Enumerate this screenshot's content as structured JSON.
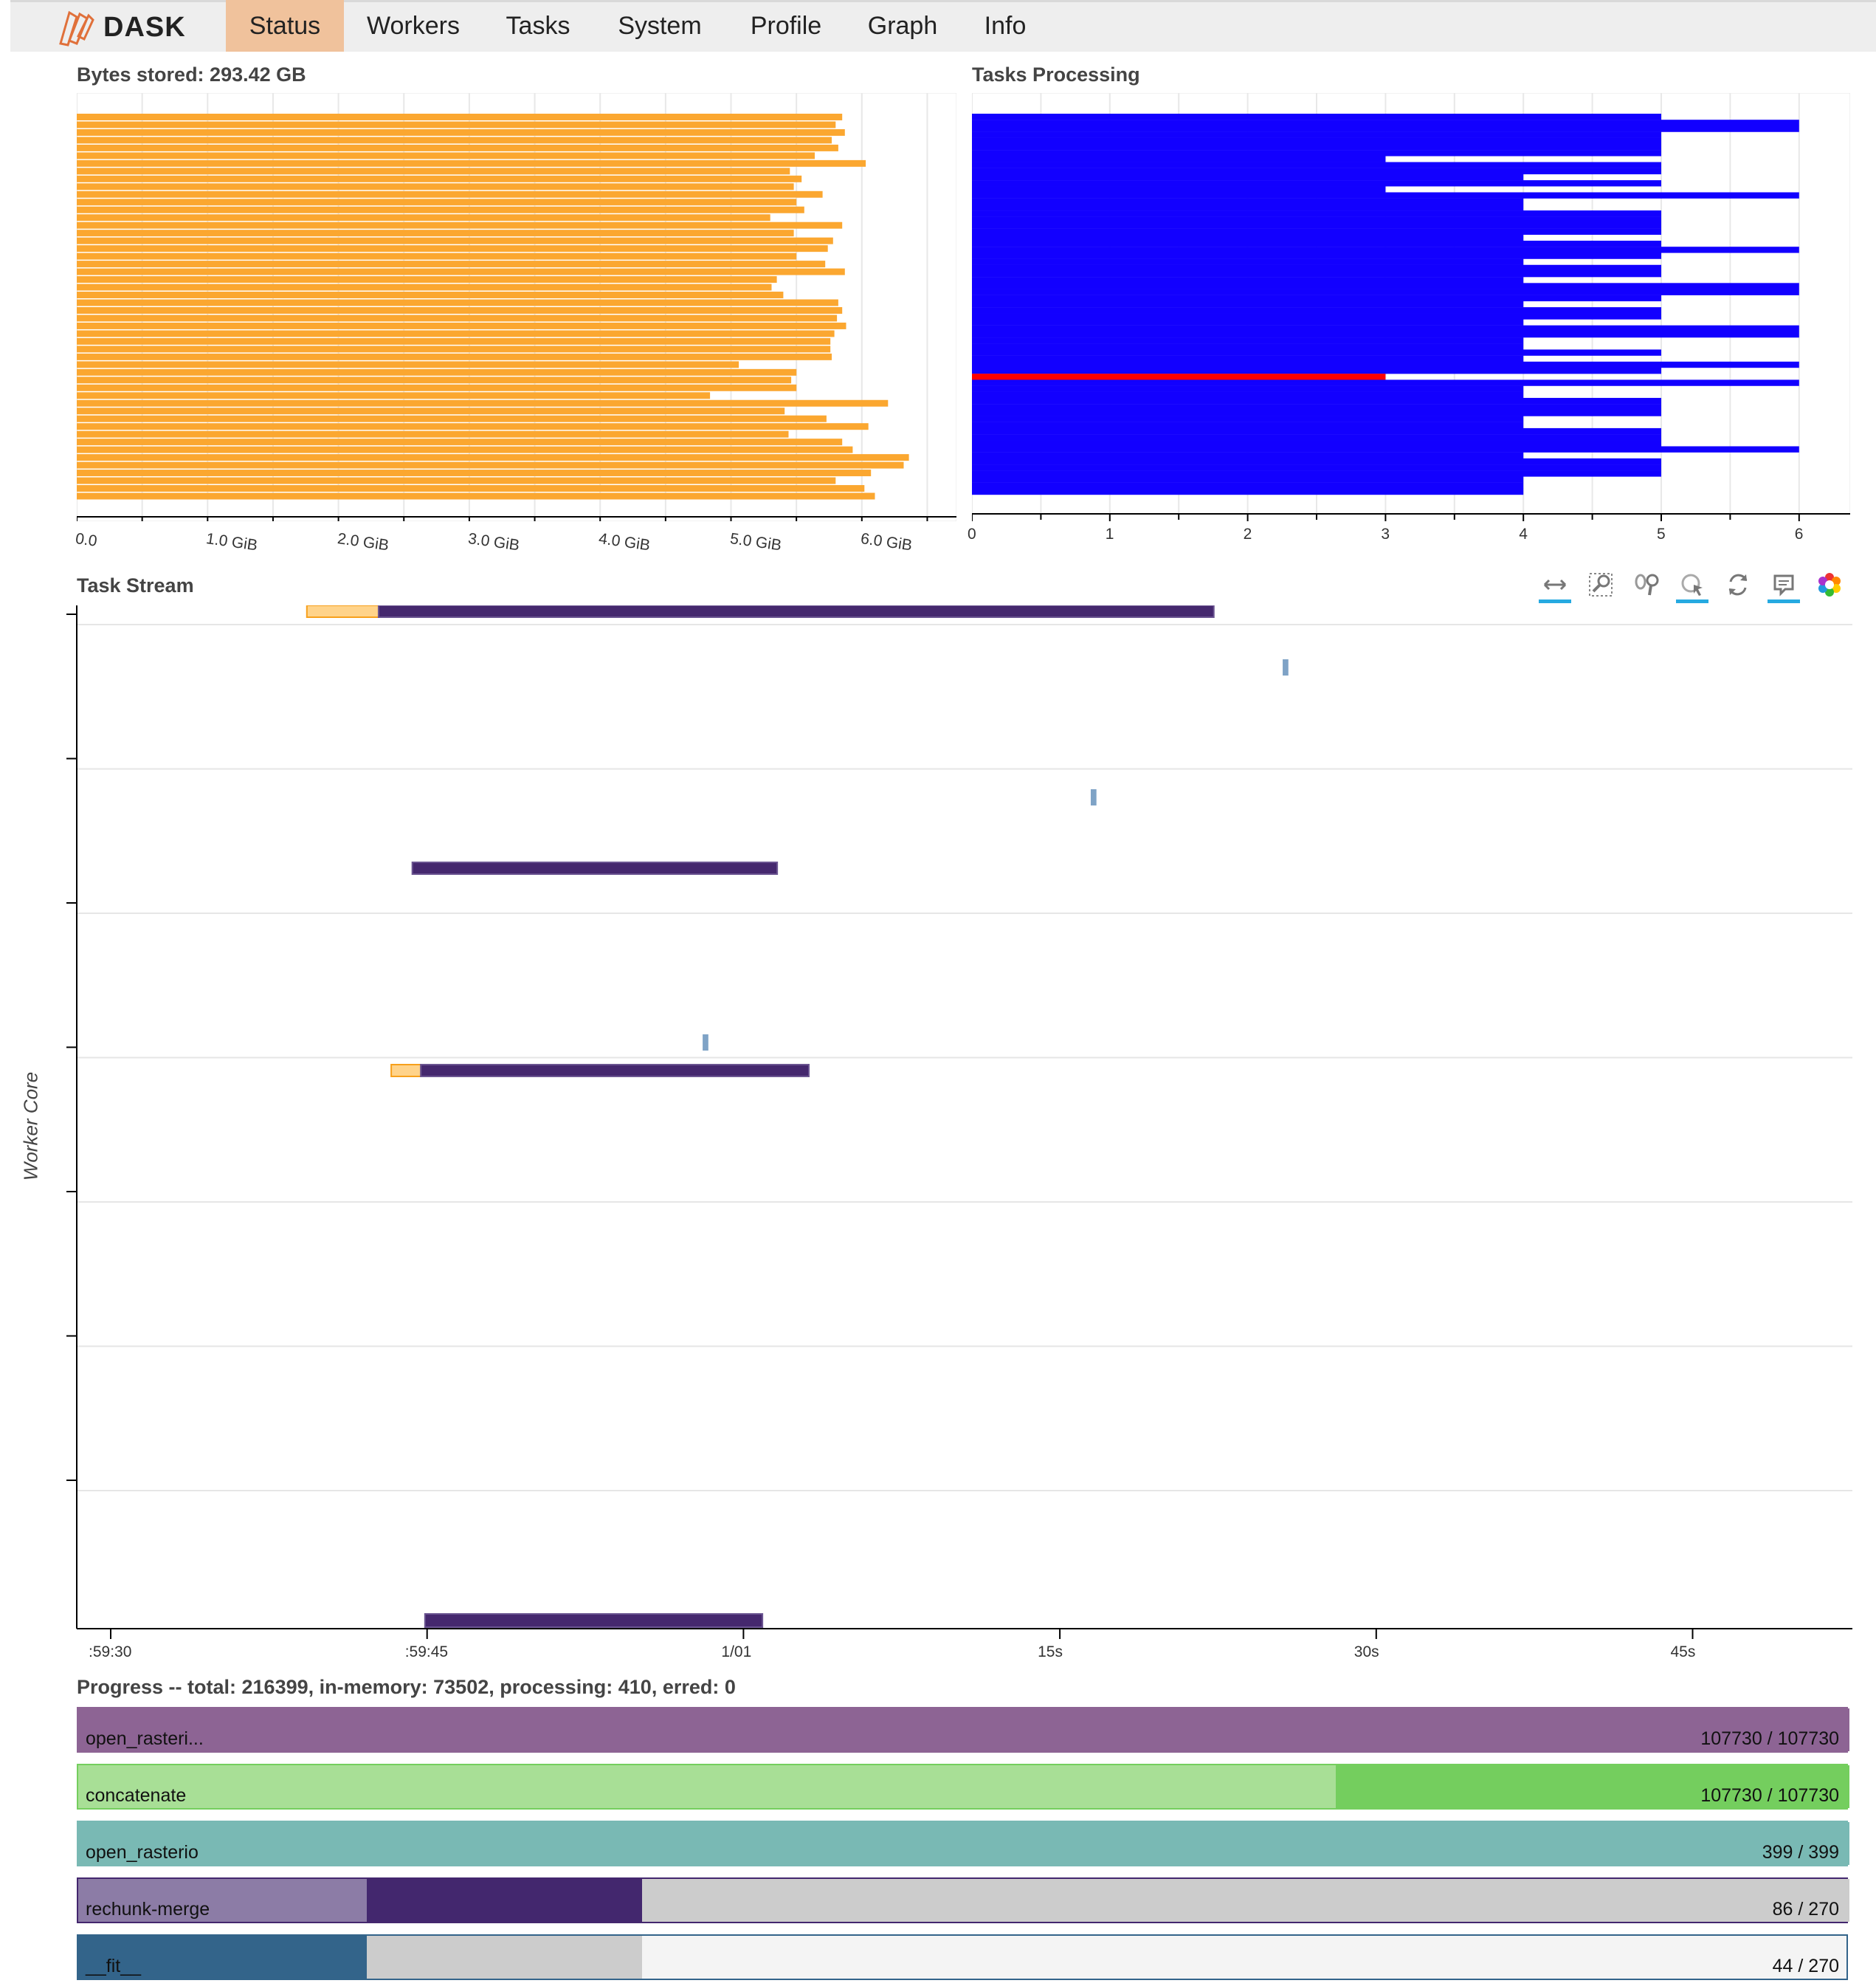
{
  "nav": {
    "brand": "DASK",
    "tabs": [
      {
        "label": "Status",
        "active": true
      },
      {
        "label": "Workers",
        "active": false
      },
      {
        "label": "Tasks",
        "active": false
      },
      {
        "label": "System",
        "active": false
      },
      {
        "label": "Profile",
        "active": false
      },
      {
        "label": "Graph",
        "active": false
      },
      {
        "label": "Info",
        "active": false
      }
    ]
  },
  "bytes_stored": {
    "title": "Bytes stored: 293.42 GB",
    "color": "#fba730",
    "x_ticks": [
      "0.0",
      "1.0 GiB",
      "2.0 GiB",
      "3.0 GiB",
      "4.0 GiB",
      "5.0 GiB",
      "6.0 GiB"
    ]
  },
  "tasks_processing": {
    "title": "Tasks Processing",
    "normal_color": "#1200ff",
    "alert_color": "#ff0000",
    "x_ticks": [
      "0",
      "1",
      "2",
      "3",
      "4",
      "5",
      "6"
    ]
  },
  "task_stream": {
    "title": "Task Stream",
    "y_axis_label": "Worker Core",
    "x_ticks": [
      ":59:30",
      ":59:45",
      "1/01",
      "15s",
      "30s",
      "45s"
    ],
    "tools": [
      "pan-icon",
      "box-zoom-icon",
      "wheel-zoom-icon",
      "tap-icon",
      "reset-icon",
      "hover-icon",
      "bokeh-logo-icon"
    ]
  },
  "progress": {
    "title": "Progress -- total: 216399, in-memory: 73502, processing: 410, erred: 0",
    "rows": [
      {
        "name": "open_rasteri...",
        "count": "107730 / 107730",
        "memory": 107730,
        "released": 0,
        "waiting": 0,
        "total": 107730,
        "color_mem": "#8d6494",
        "color_rel": "#8d6494"
      },
      {
        "name": "concatenate",
        "count": "107730 / 107730",
        "memory": 107730,
        "released": 76500,
        "waiting": 0,
        "total": 107730,
        "color_mem": "#74ce5e",
        "color_rel": "#a8df96"
      },
      {
        "name": "open_rasterio",
        "count": "399 / 399",
        "memory": 399,
        "released": 0,
        "waiting": 0,
        "total": 399,
        "color_mem": "#79b9b4",
        "color_rel": "#79b9b4"
      },
      {
        "name": "rechunk-merge",
        "count": "86 / 270",
        "memory": 86,
        "released": 44,
        "waiting": 184,
        "total": 270,
        "color_mem": "#43276e",
        "color_rel": "#8c7ca6"
      },
      {
        "name": "__fit__",
        "count": "44 / 270",
        "memory": 44,
        "released": 0,
        "waiting": 42,
        "total": 270,
        "color_mem": "#33648a",
        "color_rel": "#33648a"
      }
    ]
  }
}
